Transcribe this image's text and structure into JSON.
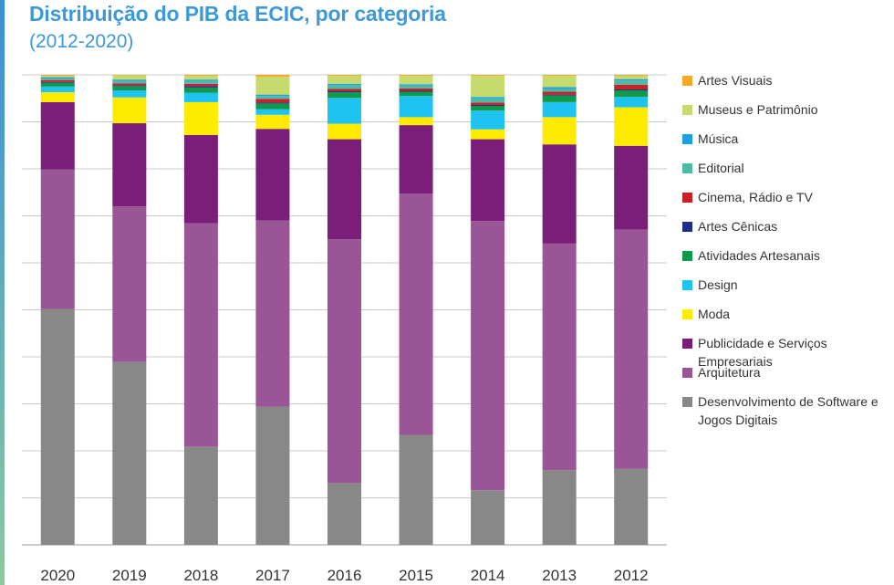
{
  "title": "Distribuição do PIB da ECIC, por categoria",
  "subtitle": "(2012-2020)",
  "chart_data": {
    "type": "bar",
    "stacked": true,
    "normalized": true,
    "categories": [
      "2020",
      "2019",
      "2018",
      "2017",
      "2016",
      "2015",
      "2014",
      "2013",
      "2012"
    ],
    "ylim": [
      0,
      100
    ],
    "grid": true,
    "legend_position": "right",
    "series": [
      {
        "name": "Desenvolvimento de Software e Jogos Digitais",
        "color": "#888888",
        "values": [
          50.2,
          38.9,
          20.9,
          29.4,
          13.2,
          23.4,
          11.6,
          15.9,
          16.2
        ]
      },
      {
        "name": "Arquitetura",
        "color": "#9a5597",
        "values": [
          29.7,
          33.1,
          47.5,
          39.6,
          51.8,
          51.3,
          57.3,
          48.2,
          50.9
        ]
      },
      {
        "name": "Publicidade e Serviços Empresariais",
        "color": "#7b1e7a",
        "values": [
          14.3,
          17.7,
          18.8,
          19.5,
          21.3,
          14.6,
          17.4,
          21.1,
          17.8
        ]
      },
      {
        "name": "Moda",
        "color": "#ffeb00",
        "values": [
          2.1,
          5.5,
          7.0,
          3.0,
          3.3,
          1.7,
          2.1,
          5.8,
          8.2
        ]
      },
      {
        "name": "Design",
        "color": "#1ec3f0",
        "values": [
          1.2,
          1.5,
          2.0,
          1.2,
          5.5,
          4.5,
          4.0,
          3.2,
          2.2
        ]
      },
      {
        "name": "Atividades Artesanais",
        "color": "#0e9a48",
        "values": [
          0.8,
          0.9,
          1.1,
          1.2,
          1.2,
          0.9,
          1.0,
          1.4,
          1.4
        ]
      },
      {
        "name": "Artes Cênicas",
        "color": "#1e2d8c",
        "values": [
          0.2,
          0.2,
          0.3,
          0.2,
          0.2,
          0.2,
          0.2,
          0.2,
          0.2
        ]
      },
      {
        "name": "Cinema, Rádio e TV",
        "color": "#cc1f26",
        "values": [
          0.4,
          0.4,
          0.5,
          0.8,
          0.5,
          0.5,
          0.5,
          0.6,
          1.0
        ]
      },
      {
        "name": "Editorial",
        "color": "#4dbaa6",
        "values": [
          0.3,
          0.5,
          0.6,
          0.6,
          0.8,
          0.6,
          0.9,
          0.6,
          0.9
        ]
      },
      {
        "name": "Música",
        "color": "#1aa1e0",
        "values": [
          0.3,
          0.3,
          0.3,
          0.3,
          0.3,
          0.3,
          0.3,
          0.4,
          0.3
        ]
      },
      {
        "name": "Museus e Patrimônio",
        "color": "#c6db6e",
        "values": [
          0.3,
          0.9,
          0.8,
          3.8,
          1.7,
          1.8,
          4.5,
          2.4,
          0.7
        ]
      },
      {
        "name": "Artes Visuais",
        "color": "#f7a828",
        "values": [
          0.2,
          0.1,
          0.2,
          0.4,
          0.2,
          0.2,
          0.2,
          0.2,
          0.2
        ]
      }
    ]
  },
  "legend_order": [
    "Artes Visuais",
    "Museus e Patrimônio",
    "Música",
    "Editorial",
    "Cinema, Rádio e TV",
    "Artes Cênicas",
    "Atividades Artesanais",
    "Design",
    "Moda",
    "Publicidade e Serviços Empresariais",
    "Arquitetura",
    "Desenvolvimento de Software e Jogos Digitais"
  ]
}
